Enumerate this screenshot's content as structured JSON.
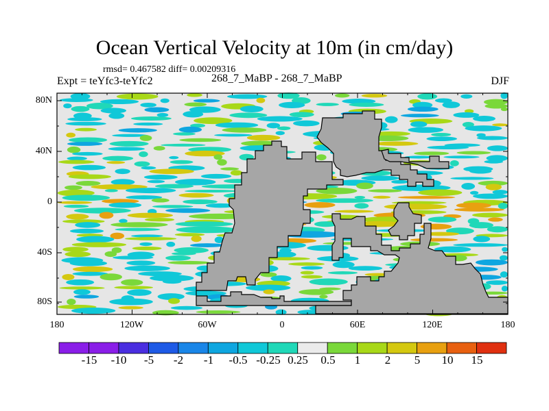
{
  "title": "Ocean Vertical Velocity at 10m (in cm/day)",
  "stats": "rmsd= 0.467582 diff= 0.00209316",
  "expt": "Expt = teYfc3-teYfc2",
  "case_label": "268_7_MaBP - 268_7_MaBP",
  "season": "DJF",
  "y_ticks": [
    "80N",
    "40N",
    "0",
    "40S",
    "80S"
  ],
  "x_ticks": [
    "180",
    "120W",
    "60W",
    "0",
    "60E",
    "120E",
    "180"
  ],
  "colorbar": {
    "labels": [
      "-15",
      "-10",
      "-5",
      "-2",
      "-1",
      "-0.5",
      "-0.25",
      "0.25",
      "0.5",
      "1",
      "2",
      "5",
      "10",
      "15"
    ],
    "colors": [
      "#8a1ee8",
      "#4a2ee0",
      "#1e5ae6",
      "#1a86e8",
      "#0ea6e0",
      "#10c8d8",
      "#20d8b8",
      "#ebebeb",
      "#7ad83a",
      "#a8d818",
      "#d4c810",
      "#e8a010",
      "#e86010",
      "#e03010"
    ]
  },
  "land_color": "#a6a6a6",
  "ocean_color": "#e6e6e6"
}
